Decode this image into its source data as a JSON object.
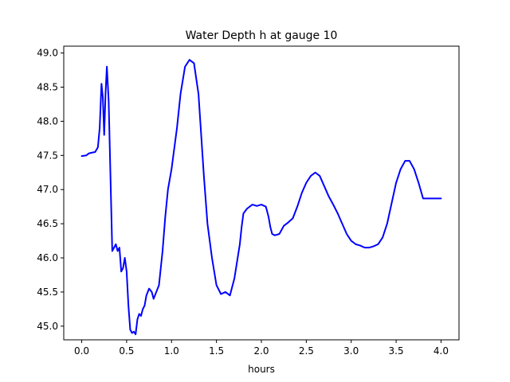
{
  "chart_data": {
    "type": "line",
    "title": "Water Depth h at gauge 10",
    "xlabel": "hours",
    "ylabel": "",
    "xlim": [
      -0.2,
      4.2
    ],
    "ylim": [
      44.8,
      49.1
    ],
    "xticks": [
      0.0,
      0.5,
      1.0,
      1.5,
      2.0,
      2.5,
      3.0,
      3.5,
      4.0
    ],
    "xtick_labels": [
      "0.0",
      "0.5",
      "1.0",
      "1.5",
      "2.0",
      "2.5",
      "3.0",
      "3.5",
      "4.0"
    ],
    "yticks": [
      45.0,
      45.5,
      46.0,
      46.5,
      47.0,
      47.5,
      48.0,
      48.5,
      49.0
    ],
    "ytick_labels": [
      "45.0",
      "45.5",
      "46.0",
      "46.5",
      "47.0",
      "47.5",
      "48.0",
      "48.5",
      "49.0"
    ],
    "grid": false,
    "series": [
      {
        "color": "#0000ff",
        "x": [
          0.0,
          0.05,
          0.08,
          0.11,
          0.15,
          0.18,
          0.2,
          0.22,
          0.235,
          0.25,
          0.265,
          0.28,
          0.3,
          0.32,
          0.34,
          0.36,
          0.38,
          0.4,
          0.42,
          0.44,
          0.46,
          0.48,
          0.5,
          0.52,
          0.54,
          0.56,
          0.58,
          0.6,
          0.62,
          0.64,
          0.66,
          0.68,
          0.7,
          0.72,
          0.75,
          0.78,
          0.8,
          0.83,
          0.86,
          0.9,
          0.93,
          0.96,
          1.0,
          1.03,
          1.06,
          1.1,
          1.15,
          1.2,
          1.25,
          1.3,
          1.33,
          1.36,
          1.4,
          1.45,
          1.5,
          1.55,
          1.6,
          1.65,
          1.7,
          1.73,
          1.76,
          1.78,
          1.8,
          1.84,
          1.9,
          1.95,
          2.0,
          2.05,
          2.08,
          2.1,
          2.12,
          2.15,
          2.2,
          2.25,
          2.3,
          2.35,
          2.4,
          2.45,
          2.5,
          2.55,
          2.6,
          2.65,
          2.7,
          2.75,
          2.8,
          2.85,
          2.9,
          2.95,
          3.0,
          3.05,
          3.1,
          3.15,
          3.2,
          3.25,
          3.3,
          3.35,
          3.4,
          3.45,
          3.5,
          3.55,
          3.6,
          3.65,
          3.7,
          3.75,
          3.8,
          3.85,
          3.9,
          3.95,
          4.0
        ],
        "y": [
          47.49,
          47.5,
          47.53,
          47.54,
          47.55,
          47.62,
          47.9,
          48.55,
          48.35,
          47.8,
          48.4,
          48.8,
          48.3,
          47.2,
          46.1,
          46.15,
          46.2,
          46.1,
          46.15,
          45.8,
          45.85,
          46.0,
          45.8,
          45.3,
          44.95,
          44.9,
          44.92,
          44.88,
          45.1,
          45.18,
          45.15,
          45.25,
          45.3,
          45.45,
          45.55,
          45.5,
          45.4,
          45.5,
          45.6,
          46.1,
          46.6,
          47.0,
          47.3,
          47.6,
          47.9,
          48.4,
          48.8,
          48.9,
          48.85,
          48.4,
          47.8,
          47.2,
          46.5,
          46.0,
          45.6,
          45.47,
          45.5,
          45.45,
          45.7,
          45.95,
          46.2,
          46.45,
          46.65,
          46.72,
          46.78,
          46.76,
          46.78,
          46.75,
          46.6,
          46.45,
          46.35,
          46.33,
          46.35,
          46.47,
          46.52,
          46.58,
          46.75,
          46.95,
          47.1,
          47.2,
          47.25,
          47.2,
          47.05,
          46.9,
          46.78,
          46.65,
          46.5,
          46.35,
          46.25,
          46.2,
          46.18,
          46.15,
          46.15,
          46.17,
          46.2,
          46.3,
          46.5,
          46.8,
          47.1,
          47.3,
          47.42,
          47.42,
          47.3,
          47.1,
          46.87,
          46.87,
          46.87,
          46.87,
          46.87
        ]
      }
    ]
  }
}
